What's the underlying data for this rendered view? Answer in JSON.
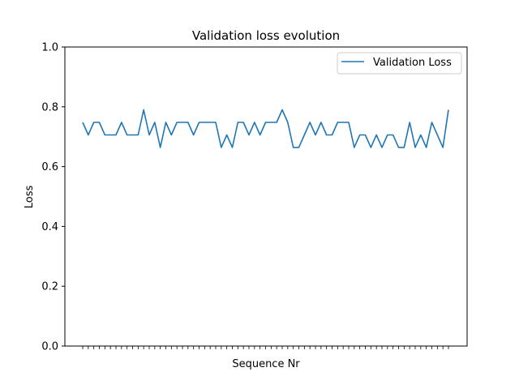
{
  "chart_data": {
    "type": "line",
    "title": "Validation loss evolution",
    "xlabel": "Sequence Nr",
    "ylabel": "Loss",
    "ylim": [
      0,
      1
    ],
    "y_ticks": [
      "0.0",
      "0.2",
      "0.4",
      "0.6",
      "0.8",
      "1.0"
    ],
    "x_tick_labels_visible": false,
    "grid": false,
    "legend_position": "top-right",
    "series": [
      {
        "name": "Validation Loss",
        "color": "#1f77b4",
        "values": [
          0.748,
          0.706,
          0.748,
          0.748,
          0.706,
          0.706,
          0.706,
          0.748,
          0.706,
          0.706,
          0.706,
          0.79,
          0.706,
          0.748,
          0.664,
          0.748,
          0.706,
          0.748,
          0.748,
          0.748,
          0.706,
          0.748,
          0.748,
          0.748,
          0.748,
          0.664,
          0.706,
          0.664,
          0.748,
          0.748,
          0.706,
          0.748,
          0.706,
          0.748,
          0.748,
          0.748,
          0.79,
          0.748,
          0.664,
          0.664,
          0.706,
          0.748,
          0.706,
          0.748,
          0.706,
          0.706,
          0.748,
          0.748,
          0.748,
          0.664,
          0.706,
          0.706,
          0.664,
          0.706,
          0.664,
          0.706,
          0.706,
          0.664,
          0.664,
          0.748,
          0.664,
          0.706,
          0.664,
          0.748,
          0.706,
          0.664,
          0.79
        ]
      }
    ]
  }
}
